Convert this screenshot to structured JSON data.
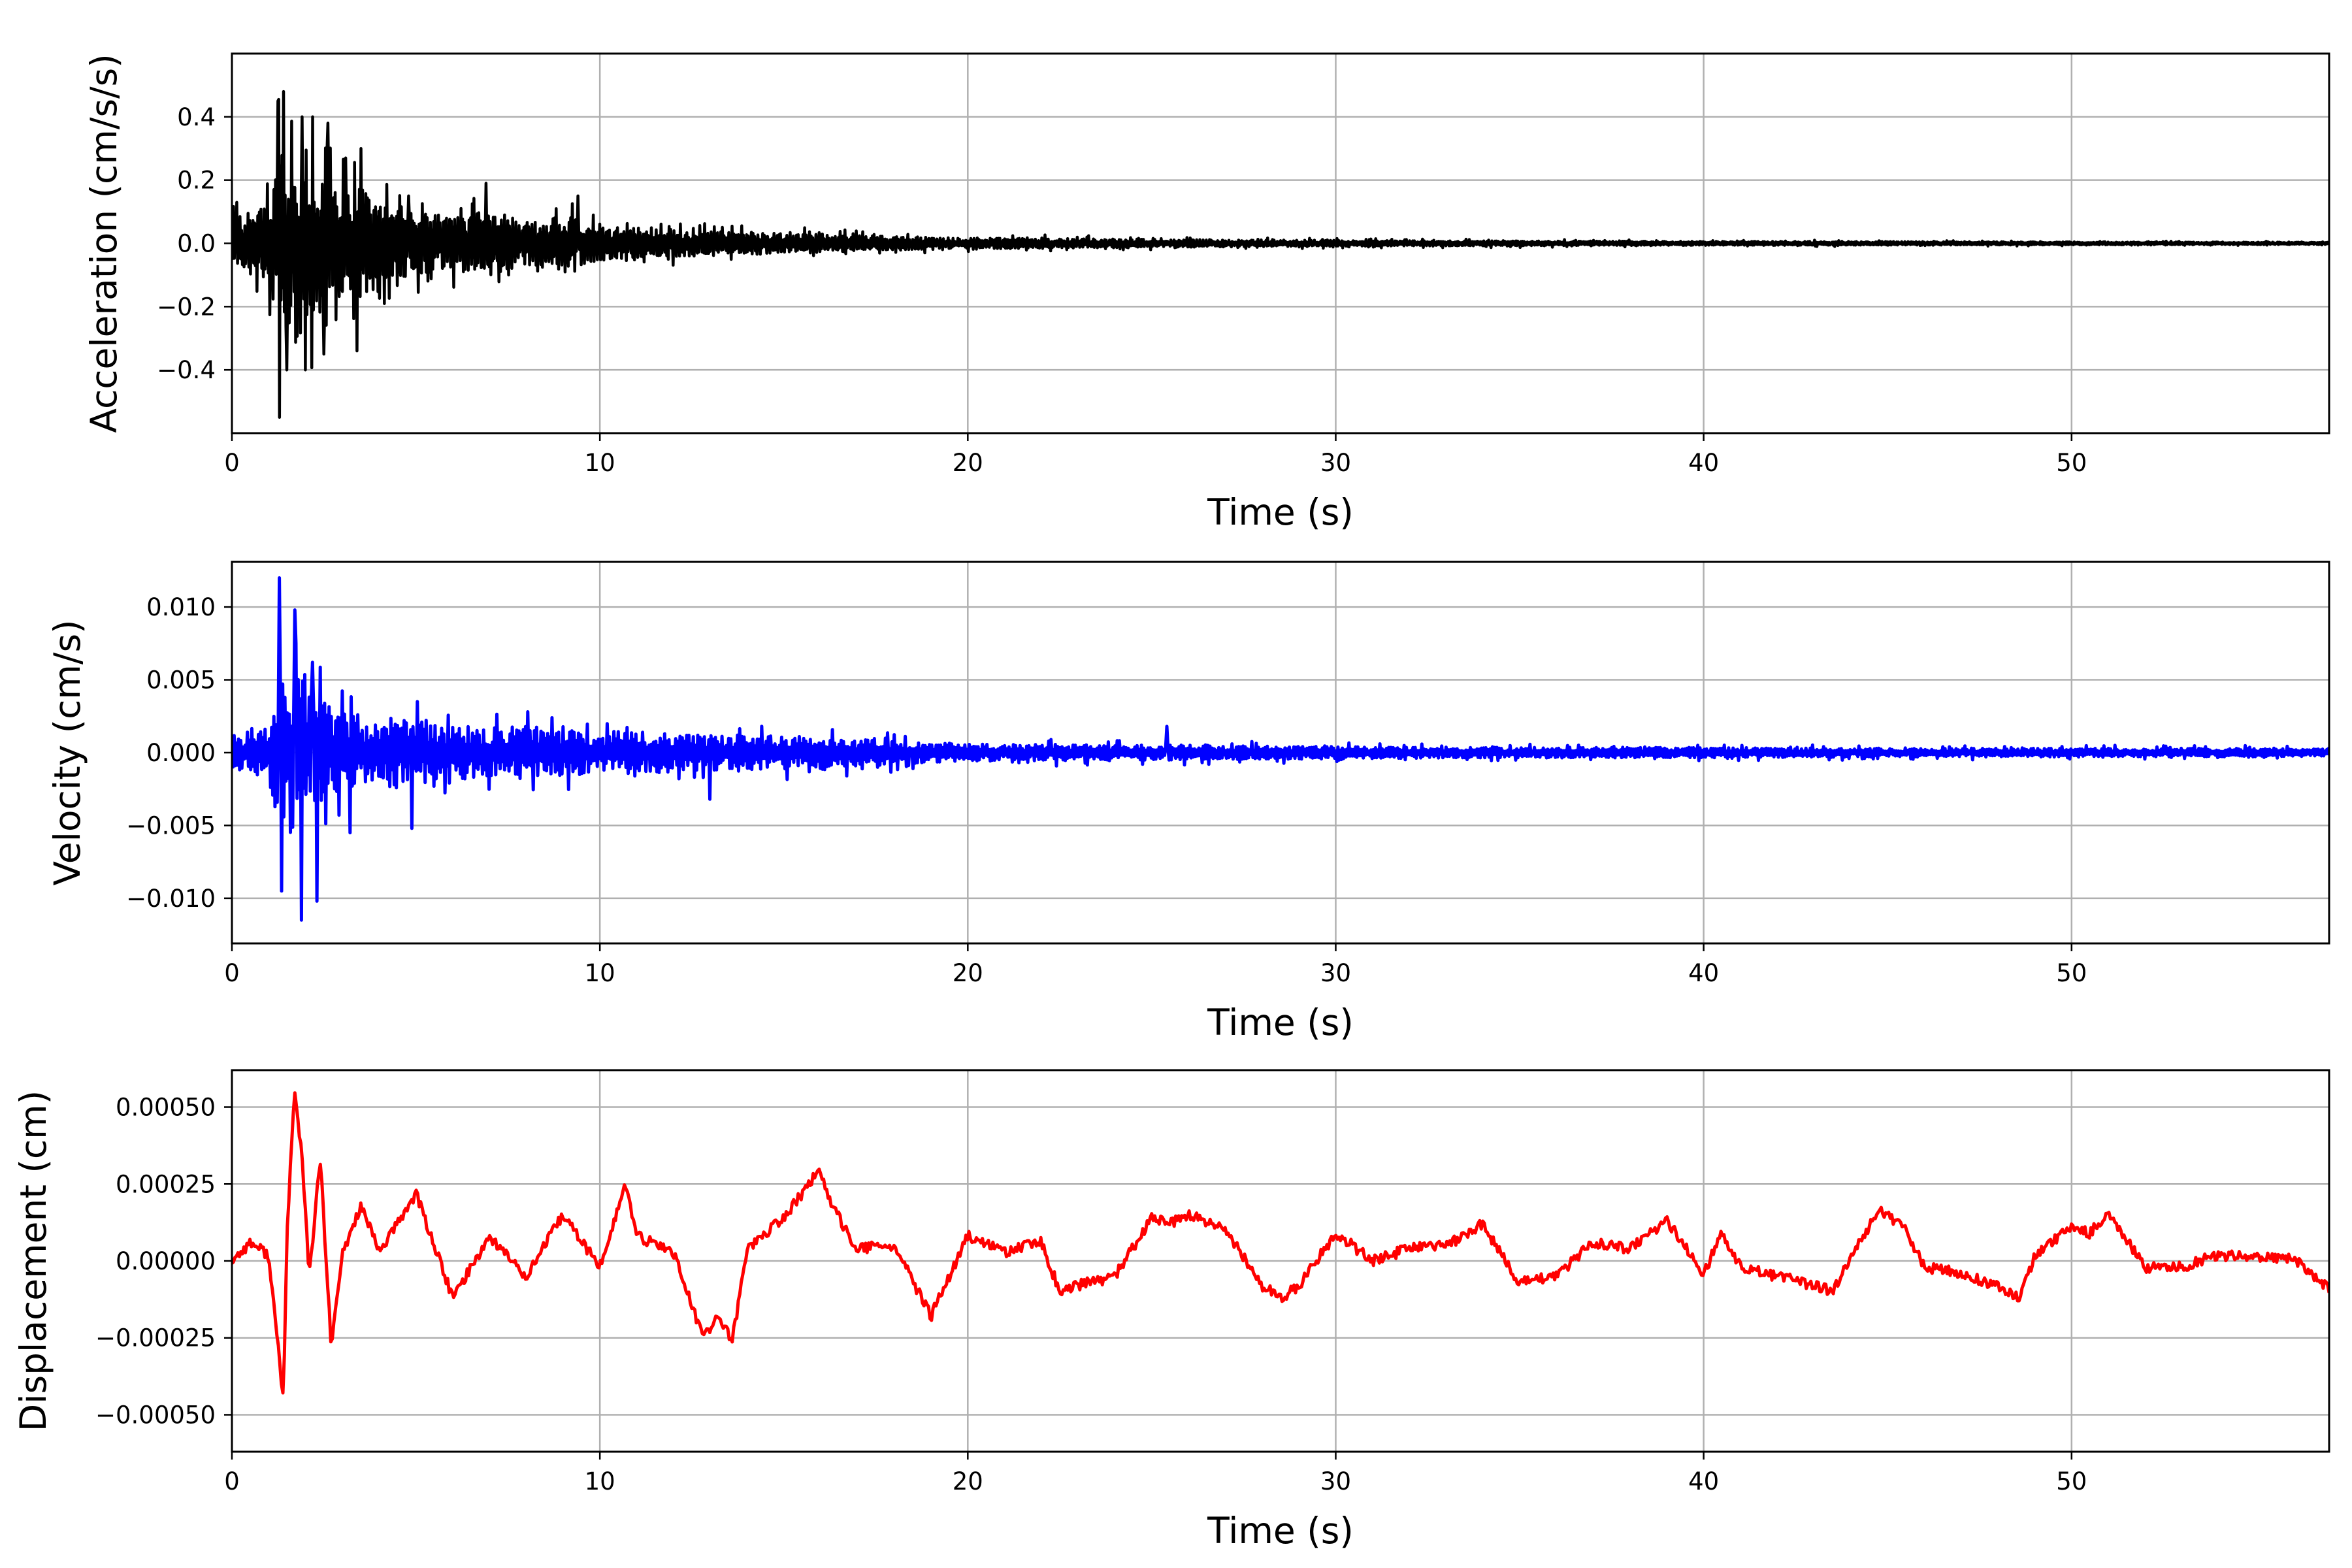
{
  "chart_data": [
    {
      "type": "line",
      "name": "acceleration",
      "color": "#000000",
      "xlabel": "Time (s)",
      "ylabel": "Acceleration (cm/s/s)",
      "xlim": [
        0,
        57
      ],
      "ylim": [
        -0.6,
        0.6
      ],
      "xticks": [
        0,
        10,
        20,
        30,
        40,
        50
      ],
      "xtick_labels": [
        "0",
        "10",
        "20",
        "30",
        "40",
        "50"
      ],
      "yticks": [
        0.4,
        0.2,
        0.0,
        -0.2,
        -0.4
      ],
      "ytick_labels": [
        "0.4",
        "0.2",
        "0.0",
        "−0.2",
        "−0.4"
      ],
      "grid": true,
      "series": [
        {
          "x": [
            0,
            1,
            1.3,
            1.5,
            2,
            2.5,
            3,
            3.5,
            4,
            5,
            6,
            7,
            8,
            9,
            10,
            12,
            14,
            16,
            18,
            20,
            25,
            30,
            35,
            40,
            45,
            50,
            55,
            57
          ],
          "envelope": [
            0.12,
            0.22,
            0.48,
            0.44,
            0.42,
            0.35,
            0.28,
            0.3,
            0.2,
            0.16,
            0.14,
            0.18,
            0.12,
            0.14,
            0.09,
            0.07,
            0.06,
            0.05,
            0.035,
            0.03,
            0.022,
            0.016,
            0.013,
            0.011,
            0.01,
            0.008,
            0.007,
            0.006
          ],
          "peaks": [
            [
              1.25,
              0.45
            ],
            [
              1.3,
              -0.55
            ],
            [
              1.4,
              0.48
            ],
            [
              1.5,
              -0.4
            ],
            [
              1.9,
              0.4
            ],
            [
              2.0,
              -0.4
            ],
            [
              2.2,
              0.4
            ],
            [
              2.5,
              -0.35
            ],
            [
              2.6,
              0.38
            ],
            [
              3.1,
              0.27
            ],
            [
              3.4,
              -0.34
            ],
            [
              3.5,
              0.3
            ],
            [
              6.9,
              0.19
            ],
            [
              4.8,
              0.15
            ],
            [
              9.4,
              0.15
            ]
          ]
        }
      ]
    },
    {
      "type": "line",
      "name": "velocity",
      "color": "#0000ff",
      "xlabel": "Time (s)",
      "ylabel": "Velocity (cm/s)",
      "xlim": [
        0,
        57
      ],
      "ylim": [
        -0.0131,
        0.0131
      ],
      "xticks": [
        0,
        10,
        20,
        30,
        40,
        50
      ],
      "xtick_labels": [
        "0",
        "10",
        "20",
        "30",
        "40",
        "50"
      ],
      "yticks": [
        0.01,
        0.005,
        0.0,
        -0.005,
        -0.01
      ],
      "ytick_labels": [
        "0.010",
        "0.005",
        "0.000",
        "−0.005",
        "−0.010"
      ],
      "grid": true,
      "series": [
        {
          "x": [
            0,
            1,
            1.3,
            1.5,
            2,
            2.5,
            3,
            4,
            5,
            6,
            7,
            8,
            10,
            12,
            14,
            16,
            18,
            20,
            25,
            30,
            35,
            40,
            45,
            50,
            55,
            57
          ],
          "envelope": [
            0.0018,
            0.003,
            0.011,
            0.009,
            0.01,
            0.006,
            0.0045,
            0.004,
            0.004,
            0.0035,
            0.003,
            0.003,
            0.0025,
            0.0022,
            0.002,
            0.0018,
            0.0014,
            0.001,
            0.0009,
            0.0007,
            0.0006,
            0.0006,
            0.0005,
            0.0005,
            0.0005,
            0.0004
          ],
          "peaks": [
            [
              1.3,
              0.012
            ],
            [
              1.35,
              -0.0095
            ],
            [
              1.7,
              0.0098
            ],
            [
              1.9,
              -0.0115
            ],
            [
              2.3,
              -0.0102
            ],
            [
              2.2,
              0.0062
            ],
            [
              3.2,
              -0.0055
            ],
            [
              4.9,
              0.0048
            ],
            [
              4.9,
              -0.0052
            ],
            [
              13.0,
              -0.0032
            ],
            [
              25.4,
              0.0018
            ]
          ]
        }
      ]
    },
    {
      "type": "line",
      "name": "displacement",
      "color": "#ff0000",
      "xlabel": "Time (s)",
      "ylabel": "Displacement (cm)",
      "xlim": [
        0,
        57
      ],
      "ylim": [
        -0.00062,
        0.00062
      ],
      "xticks": [
        0,
        10,
        20,
        30,
        40,
        50
      ],
      "xtick_labels": [
        "0",
        "10",
        "20",
        "30",
        "40",
        "50"
      ],
      "yticks": [
        0.0005,
        0.00025,
        0.0,
        -0.00025,
        -0.0005
      ],
      "ytick_labels": [
        "0.00050",
        "0.00025",
        "0.00000",
        "−0.00025",
        "−0.00050"
      ],
      "grid": true,
      "series": [
        {
          "x": [
            0,
            0.5,
            1,
            1.2,
            1.4,
            1.5,
            1.7,
            1.9,
            2.1,
            2.4,
            2.7,
            3,
            3.5,
            4,
            4.5,
            5,
            6,
            7,
            8,
            9,
            10,
            10.7,
            11,
            12,
            12.8,
            13.2,
            13.6,
            14,
            15,
            16,
            16.2,
            17,
            18,
            19,
            19.5,
            20,
            21,
            22,
            22.5,
            23,
            24,
            25,
            25.5,
            26,
            27,
            28,
            28.5,
            29,
            30,
            31,
            32,
            33,
            34,
            34.5,
            35,
            36,
            37,
            38,
            39,
            40,
            40.5,
            41,
            42,
            43,
            43.5,
            44,
            44.8,
            45.5,
            46,
            47,
            48,
            48.6,
            49,
            50,
            50.5,
            51,
            52,
            53,
            54,
            55,
            56,
            57
          ],
          "y": [
            0,
            6e-05,
            2e-05,
            -0.00022,
            -0.00045,
            0.0001,
            0.00055,
            0.00035,
            -5e-05,
            0.00033,
            -0.00028,
            2e-05,
            0.00018,
            3e-05,
            0.00012,
            0.00022,
            -0.00012,
            8e-05,
            -5e-05,
            0.00015,
            -2e-05,
            0.00025,
            8e-05,
            3e-05,
            -0.00025,
            -0.00018,
            -0.00026,
            4e-05,
            0.00014,
            0.0003,
            0.0002,
            4e-05,
            5e-05,
            -0.00018,
            -5e-05,
            8e-05,
            3e-05,
            6e-05,
            -0.0001,
            -8e-05,
            -5e-05,
            0.00014,
            0.00012,
            0.00015,
            0.0001,
            -8e-05,
            -0.00012,
            -8e-05,
            9e-05,
            0,
            4e-05,
            5e-05,
            0.00012,
            2e-05,
            -7e-05,
            -5e-05,
            6e-05,
            4e-05,
            0.00013,
            -4e-05,
            9e-05,
            -2e-05,
            -5e-05,
            -8e-05,
            -0.0001,
            2e-05,
            0.00017,
            0.0001,
            -2e-05,
            -4e-05,
            -8e-05,
            -0.00012,
            2e-05,
            0.00011,
            9e-05,
            0.00016,
            -2e-05,
            -2e-05,
            2e-05,
            1e-05,
            1e-05,
            -9e-05
          ]
        }
      ]
    }
  ]
}
